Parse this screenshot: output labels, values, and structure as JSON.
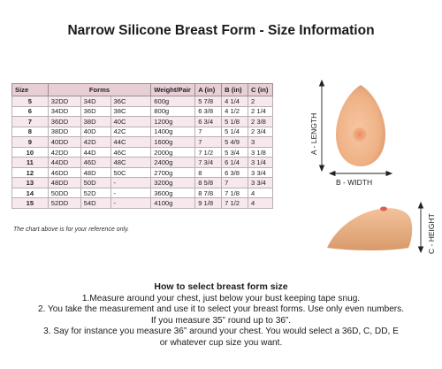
{
  "title": "Narrow Silicone Breast Form - Size Information",
  "table": {
    "headers": {
      "size": "Size",
      "forms": "Forms",
      "weight": "Weight/Pair",
      "a": "A (in)",
      "b": "B (in)",
      "c": "C (in)"
    },
    "rows": [
      {
        "size": "5",
        "f1": "32DD",
        "f2": "34D",
        "f3": "36C",
        "weight": "600g",
        "a": "5 7/8",
        "b": "4 1/4",
        "c": "2"
      },
      {
        "size": "6",
        "f1": "34DD",
        "f2": "36D",
        "f3": "38C",
        "weight": "800g",
        "a": "6 3/8",
        "b": "4 1/2",
        "c": "2 1/4"
      },
      {
        "size": "7",
        "f1": "36DD",
        "f2": "38D",
        "f3": "40C",
        "weight": "1200g",
        "a": "6 3/4",
        "b": "5 1/8",
        "c": "2 3/8"
      },
      {
        "size": "8",
        "f1": "38DD",
        "f2": "40D",
        "f3": "42C",
        "weight": "1400g",
        "a": "7",
        "b": "5 1/4",
        "c": "2 3/4"
      },
      {
        "size": "9",
        "f1": "40DD",
        "f2": "42D",
        "f3": "44C",
        "weight": "1600g",
        "a": "7",
        "b": "5 4/9",
        "c": "3"
      },
      {
        "size": "10",
        "f1": "42DD",
        "f2": "44D",
        "f3": "46C",
        "weight": "2000g",
        "a": "7 1/2",
        "b": "5 3/4",
        "c": "3 1/8"
      },
      {
        "size": "11",
        "f1": "44DD",
        "f2": "46D",
        "f3": "48C",
        "weight": "2400g",
        "a": "7 3/4",
        "b": "6 1/4",
        "c": "3 1/4"
      },
      {
        "size": "12",
        "f1": "46DD",
        "f2": "48D",
        "f3": "50C",
        "weight": "2700g",
        "a": "8",
        "b": "6 3/8",
        "c": "3 3/4"
      },
      {
        "size": "13",
        "f1": "48DD",
        "f2": "50D",
        "f3": "-",
        "weight": "3200g",
        "a": "8 5/8",
        "b": "7",
        "c": "3 3/4"
      },
      {
        "size": "14",
        "f1": "50DD",
        "f2": "52D",
        "f3": "-",
        "weight": "3600g",
        "a": "8 7/8",
        "b": "7 1/8",
        "c": "4"
      },
      {
        "size": "15",
        "f1": "52DD",
        "f2": "54D",
        "f3": "-",
        "weight": "4100g",
        "a": "9 1/8",
        "b": "7 1/2",
        "c": "4"
      }
    ]
  },
  "note": "The chart above is for your reference only.",
  "diagram": {
    "length_label": "A - LENGTH",
    "width_label": "B - WIDTH",
    "height_label": "C - HEIGHT",
    "colors": {
      "skin": "#f1b48a",
      "nipple": "#e9956e",
      "line": "#222222"
    }
  },
  "howto": {
    "title": "How to select breast form size",
    "lines": [
      "1.Measure around your chest, just below your bust keeping tape snug.",
      "2. You take the measurement and use it to select your breast forms. Use only even numbers.",
      "If you measure 35” round up to 36”.",
      "3. Say for instance you measure 36” around your chest. You would select a 36D, C, DD, E",
      "or whatever cup size you want."
    ]
  }
}
